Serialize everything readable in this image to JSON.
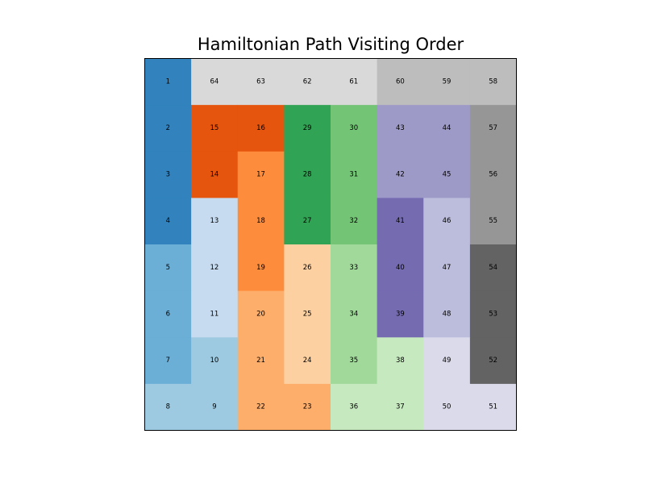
{
  "chart_data": {
    "type": "heatmap",
    "title": "Hamiltonian Path Visiting Order",
    "rows": 8,
    "cols": 8,
    "grid": [
      [
        1,
        64,
        63,
        62,
        61,
        60,
        59,
        58
      ],
      [
        2,
        15,
        16,
        29,
        30,
        43,
        44,
        57
      ],
      [
        3,
        14,
        17,
        28,
        31,
        42,
        45,
        56
      ],
      [
        4,
        13,
        18,
        27,
        32,
        41,
        46,
        55
      ],
      [
        5,
        12,
        19,
        26,
        33,
        40,
        47,
        54
      ],
      [
        6,
        11,
        20,
        25,
        34,
        39,
        48,
        53
      ],
      [
        7,
        10,
        21,
        24,
        35,
        38,
        49,
        52
      ],
      [
        8,
        9,
        22,
        23,
        36,
        37,
        50,
        51
      ]
    ],
    "colormap": [
      "#3182bd",
      "#6baed6",
      "#9ecae1",
      "#c6dbef",
      "#e6550d",
      "#fd8d3c",
      "#fdae6b",
      "#fdd0a2",
      "#31a354",
      "#74c476",
      "#a1d99b",
      "#c7e9c0",
      "#756bb1",
      "#9e9ac8",
      "#bcbddc",
      "#dadaeb",
      "#636363",
      "#969696",
      "#bdbdbd",
      "#d9d9d9"
    ],
    "value_range": [
      1,
      64
    ],
    "grid_lines": false,
    "axes_visible": false
  }
}
